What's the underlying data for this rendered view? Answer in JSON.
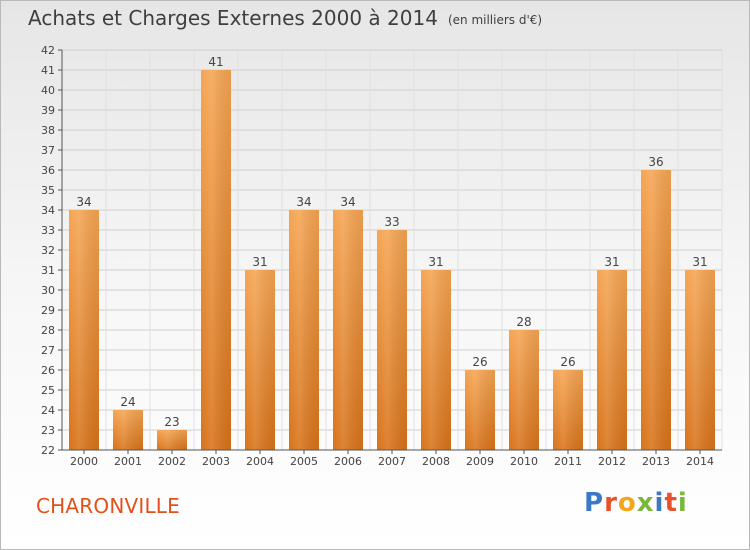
{
  "title": "Achats et Charges Externes 2000 à 2014",
  "subtitle": "(en milliers d'€)",
  "town": "CHARONVILLE",
  "brand": "Proxiti",
  "brand_colors": [
    "#3b78c8",
    "#e8522a",
    "#f2a71b",
    "#7ab83c",
    "#3b78c8",
    "#e8522a",
    "#7ab83c"
  ],
  "bar_color": "#e8882b",
  "chart_data": {
    "type": "bar",
    "categories": [
      "2000",
      "2001",
      "2002",
      "2003",
      "2004",
      "2005",
      "2006",
      "2007",
      "2008",
      "2009",
      "2010",
      "2011",
      "2012",
      "2013",
      "2014"
    ],
    "values": [
      34,
      24,
      23,
      41,
      31,
      34,
      34,
      33,
      31,
      26,
      28,
      26,
      31,
      36,
      31
    ],
    "ylim": [
      22,
      42
    ],
    "yticks": [
      22,
      23,
      24,
      25,
      26,
      27,
      28,
      29,
      30,
      31,
      32,
      33,
      34,
      35,
      36,
      37,
      38,
      39,
      40,
      41,
      42
    ],
    "grid": true,
    "data_labels": true
  }
}
